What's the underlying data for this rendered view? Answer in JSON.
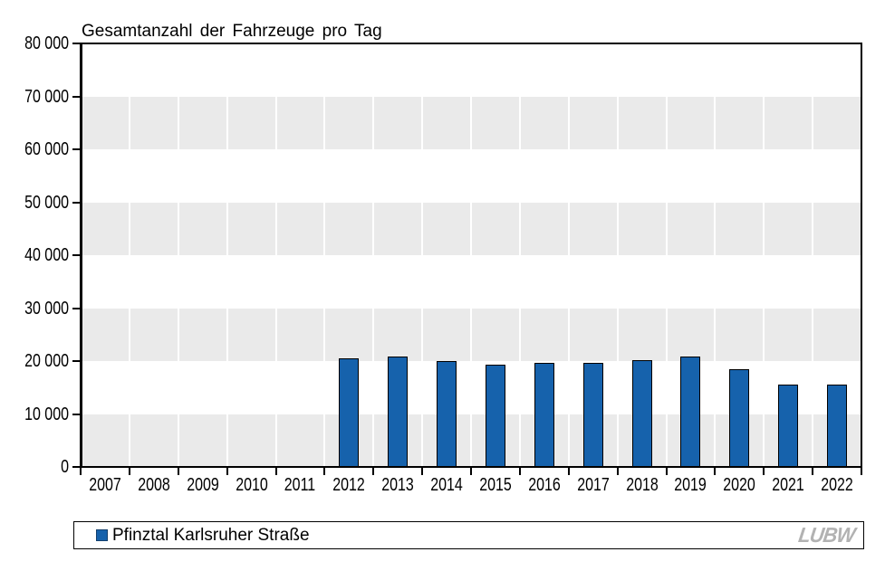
{
  "chart_data": {
    "type": "bar",
    "title": "Gesamtanzahl der Fahrzeuge pro Tag",
    "categories": [
      "2007",
      "2008",
      "2009",
      "2010",
      "2011",
      "2012",
      "2013",
      "2014",
      "2015",
      "2016",
      "2017",
      "2018",
      "2019",
      "2020",
      "2021",
      "2022"
    ],
    "series": [
      {
        "name": "Pfinztal Karlsruher Straße",
        "color": "#1662AC",
        "values": [
          null,
          null,
          null,
          null,
          null,
          20600,
          20900,
          20000,
          19300,
          19700,
          19600,
          20200,
          20800,
          18400,
          15500,
          15500
        ]
      }
    ],
    "xlabel": "",
    "ylabel": "",
    "ylim": [
      0,
      80000
    ],
    "ytick_interval": 10000,
    "yticks": [
      {
        "value": 0,
        "label": "0"
      },
      {
        "value": 10000,
        "label": "10 000"
      },
      {
        "value": 20000,
        "label": "20 000"
      },
      {
        "value": 30000,
        "label": "30 000"
      },
      {
        "value": 40000,
        "label": "40 000"
      },
      {
        "value": 50000,
        "label": "50 000"
      },
      {
        "value": 60000,
        "label": "60 000"
      },
      {
        "value": 70000,
        "label": "70 000"
      },
      {
        "value": 80000,
        "label": "80 000"
      }
    ],
    "grid": "horizontal-bands-with-white-vertical-lines",
    "band_colors": [
      "#FFFFFF",
      "#EAEAEA"
    ],
    "bar_border_color": "#000000",
    "axis_color": "#000000",
    "legend_position": "bottom"
  },
  "legend": {
    "marker_color": "#1662AC",
    "marker_border_color": "#13406E"
  },
  "logo": {
    "text": "LUBW",
    "color": "#B2B2B2"
  }
}
